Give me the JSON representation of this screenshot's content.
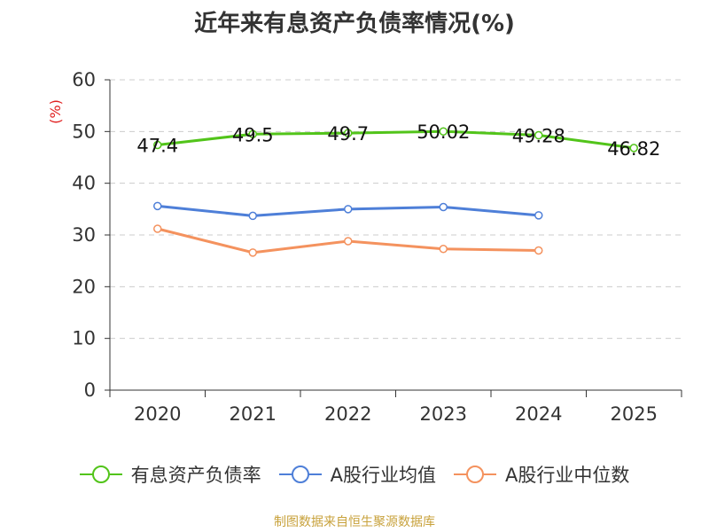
{
  "chart_data": {
    "type": "line",
    "title": "近年来有息资产负债率情况(%)",
    "ylabel": "(%)",
    "ylim": [
      0,
      60
    ],
    "yticks": [
      0,
      10,
      20,
      30,
      40,
      50,
      60
    ],
    "categories": [
      "2020",
      "2021",
      "2022",
      "2023",
      "2024",
      "2025"
    ],
    "grid": true,
    "legend_position": "bottom",
    "series": [
      {
        "name": "有息资产负债率",
        "color": "#52c41a",
        "values": [
          47.4,
          49.5,
          49.7,
          50.02,
          49.28,
          46.82
        ],
        "labels": [
          "47.4",
          "49.5",
          "49.7",
          "50.02",
          "49.28",
          "46.82"
        ]
      },
      {
        "name": "A股行业均值",
        "color": "#4e7fd8",
        "values": [
          35.6,
          33.7,
          35.0,
          35.4,
          33.8,
          null
        ]
      },
      {
        "name": "A股行业中位数",
        "color": "#f4925e",
        "values": [
          31.2,
          26.6,
          28.8,
          27.3,
          27.0,
          null
        ]
      }
    ]
  },
  "source": "制图数据来自恒生聚源数据库"
}
